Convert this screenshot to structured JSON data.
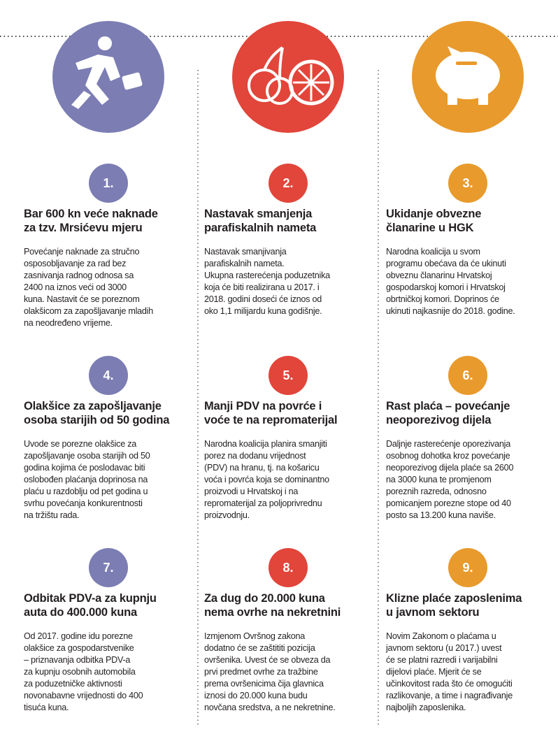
{
  "items": [
    {
      "number": "1.",
      "title": [
        "Bar 600 kn veće naknade",
        "za tzv. Mrsićevu mjeru"
      ],
      "body": [
        "Povećanje naknade za stručno",
        "osposobljavanje za rad bez",
        "zasnivanja radnog odnosa sa",
        "2400 na iznos veći od 3000",
        "kuna. Nastavit će se poreznom",
        "olakšicom za zapošljavanje mladih",
        "na neodređeno vrijeme."
      ]
    },
    {
      "number": "2.",
      "title": [
        "Nastavak smanjenja",
        "parafiskalnih nameta"
      ],
      "body": [
        "Nastavak smanjivanja",
        "parafiskalnih nameta.",
        "Ukupna rasterećenja poduzetnika",
        "koja će biti realizirana u 2017. i",
        "2018. godini doseći će iznos od",
        "oko 1,1 milijardu kuna godišnje."
      ]
    },
    {
      "number": "3.",
      "title": [
        "Ukidanje obvezne",
        "članarine u HGK"
      ],
      "body": [
        "Narodna koalicija u svom",
        "programu obećava da će ukinuti",
        "obveznu članarinu Hrvatskoj",
        "gospodarskoj komori i Hrvatskoj",
        "obrtničkoj komori. Doprinos će",
        "ukinuti najkasnije do 2018. godine."
      ]
    },
    {
      "number": "4.",
      "title": [
        "Olakšice za zapošljavanje",
        "osoba starijih od 50 godina"
      ],
      "body": [
        "Uvode se porezne olakšice za",
        "zapošljavanje osoba starijih od 50",
        "godina kojima će poslodavac biti",
        "oslobođen plaćanja doprinosa na",
        "plaću u razdoblju od pet godina u",
        "svrhu povećanja konkurentnosti",
        "na tržištu rada."
      ]
    },
    {
      "number": "5.",
      "title": [
        "Manji PDV na povrće i",
        "voće te na repromaterijal"
      ],
      "body": [
        "Narodna koalicija planira smanjiti",
        "porez na dodanu vrijednost",
        "(PDV) na hranu, tj. na košaricu",
        "voća i povrća koja se dominantno",
        "proizvodi u Hrvatskoj i na",
        "repromaterijal za poljoprivrednu",
        "proizvodnju."
      ]
    },
    {
      "number": "6.",
      "title": [
        "Rast plaća – povećanje",
        "neoporezivog dijela"
      ],
      "body": [
        "Daljnje rasterećenje oporezivanja",
        "osobnog dohotka kroz povećanje",
        "neoporezivog dijela plaće sa 2600",
        "na 3000 kuna te promjenom",
        "poreznih razreda, odnosno",
        "pomicanjem porezne stope od 40",
        "posto sa 13.200 kuna naviše."
      ]
    },
    {
      "number": "7.",
      "title": [
        "Odbitak PDV-a za kupnju",
        "auta do 400.000 kuna"
      ],
      "body": [
        "Od 2017. godine idu porezne",
        "olakšice za gospodarstvenike",
        "– priznavanja odbitka PDV-a",
        "za kupnju osobnih automobila",
        "za poduzetničke aktivnosti",
        "novonabavne vrijednosti do 400",
        "tisuća kuna."
      ]
    },
    {
      "number": "8.",
      "title": [
        "Za dug do 20.000 kuna",
        "nema ovrhe na nekretnini"
      ],
      "body": [
        "Izmjenom Ovršnog zakona",
        "dodatno će se zaštititi pozicija",
        "ovršenika. Uvest će se obveza da",
        "prvi predmet ovrhe za tražbine",
        "prema ovršenicima čija glavnica",
        "iznosi do 20.000 kuna budu",
        "novčana sredstva, a ne nekretnine."
      ]
    },
    {
      "number": "9.",
      "title": [
        "Klizne plaće zaposlenima",
        "u javnom sektoru"
      ],
      "body": [
        "Novim Zakonom o plaćama u",
        "javnom sektoru (u 2017.) uvest",
        "će se platni razredi i varijabilni",
        "dijelovi plaće. Mjerit će se",
        "učinkovitost rada što će omogućiti",
        "razlikovanje, a time i nagrađivanje",
        "najboljih zaposlenika."
      ]
    }
  ]
}
